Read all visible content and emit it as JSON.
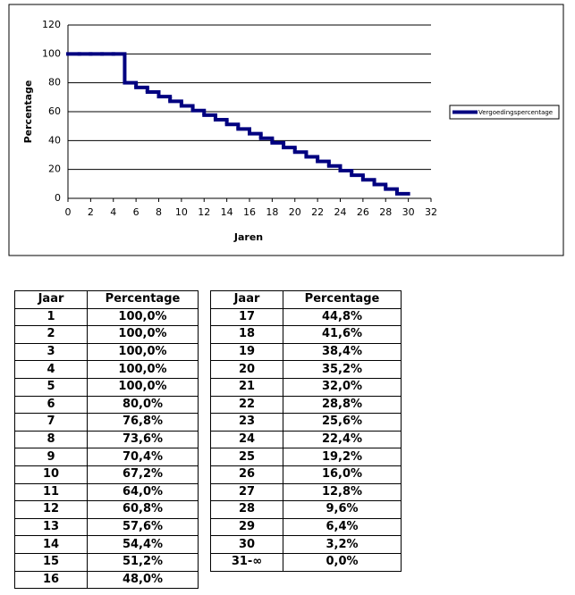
{
  "chart_data": {
    "type": "line",
    "step": true,
    "color": "#000080",
    "x_label": "Jaren",
    "y_label": "Percentage",
    "x": [
      1,
      2,
      3,
      4,
      5,
      6,
      7,
      8,
      9,
      10,
      11,
      12,
      13,
      14,
      15,
      16,
      17,
      18,
      19,
      20,
      21,
      22,
      23,
      24,
      25,
      26,
      27,
      28,
      29,
      30
    ],
    "series": [
      {
        "name": "Vergoedingspercentage",
        "color": "#000080",
        "values": [
          100,
          100,
          100,
          100,
          100,
          80,
          76.8,
          73.6,
          70.4,
          67.2,
          64,
          60.8,
          57.6,
          54.4,
          51.2,
          48,
          44.8,
          41.6,
          38.4,
          35.2,
          32,
          28.8,
          25.6,
          22.4,
          19.2,
          16,
          12.8,
          9.6,
          6.4,
          3.2
        ]
      }
    ],
    "xlim": [
      0,
      32
    ],
    "xticks": [
      0,
      2,
      4,
      6,
      8,
      10,
      12,
      14,
      16,
      18,
      20,
      22,
      24,
      26,
      28,
      30,
      32
    ],
    "ylim": [
      0,
      120
    ],
    "yticks": [
      0,
      20,
      40,
      60,
      80,
      100,
      120
    ],
    "grid": true,
    "legend": "right"
  },
  "tables": [
    {
      "header": [
        "Jaar",
        "Percentage"
      ],
      "rows": [
        [
          "1",
          "100,0%"
        ],
        [
          "2",
          "100,0%"
        ],
        [
          "3",
          "100,0%"
        ],
        [
          "4",
          "100,0%"
        ],
        [
          "5",
          "100,0%"
        ],
        [
          "6",
          "80,0%"
        ],
        [
          "7",
          "76,8%"
        ],
        [
          "8",
          "73,6%"
        ],
        [
          "9",
          "70,4%"
        ],
        [
          "10",
          "67,2%"
        ],
        [
          "11",
          "64,0%"
        ],
        [
          "12",
          "60,8%"
        ],
        [
          "13",
          "57,6%"
        ],
        [
          "14",
          "54,4%"
        ],
        [
          "15",
          "51,2%"
        ],
        [
          "16",
          "48,0%"
        ]
      ]
    },
    {
      "header": [
        "Jaar",
        "Percentage"
      ],
      "rows": [
        [
          "17",
          "44,8%"
        ],
        [
          "18",
          "41,6%"
        ],
        [
          "19",
          "38,4%"
        ],
        [
          "20",
          "35,2%"
        ],
        [
          "21",
          "32,0%"
        ],
        [
          "22",
          "28,8%"
        ],
        [
          "23",
          "25,6%"
        ],
        [
          "24",
          "22,4%"
        ],
        [
          "25",
          "19,2%"
        ],
        [
          "26",
          "16,0%"
        ],
        [
          "27",
          "12,8%"
        ],
        [
          "28",
          "9,6%"
        ],
        [
          "29",
          "6,4%"
        ],
        [
          "30",
          "3,2%"
        ],
        [
          "31-∞",
          "0,0%"
        ]
      ]
    }
  ]
}
